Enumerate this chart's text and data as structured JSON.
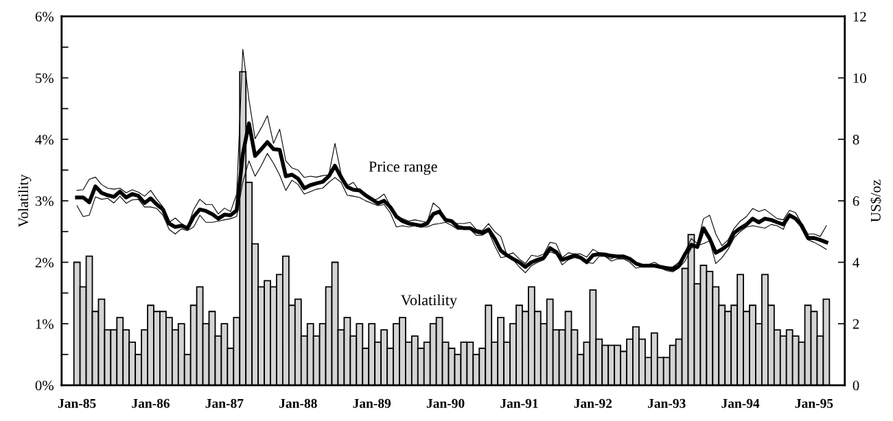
{
  "chart_data": {
    "type": "bar",
    "ylabel": "Volatility",
    "y2label": "US$/oz",
    "annotations": [
      "Price range",
      "Volatility"
    ],
    "categories": [
      "Jan-85",
      null,
      null,
      null,
      null,
      null,
      null,
      null,
      null,
      null,
      null,
      null,
      "Jan-86",
      null,
      null,
      null,
      null,
      null,
      null,
      null,
      null,
      null,
      null,
      null,
      "Jan-87",
      null,
      null,
      null,
      null,
      null,
      null,
      null,
      null,
      null,
      null,
      null,
      "Jan-88",
      null,
      null,
      null,
      null,
      null,
      null,
      null,
      null,
      null,
      null,
      null,
      "Jan-89",
      null,
      null,
      null,
      null,
      null,
      null,
      null,
      null,
      null,
      null,
      null,
      "Jan-90",
      null,
      null,
      null,
      null,
      null,
      null,
      null,
      null,
      null,
      null,
      null,
      "Jan-91",
      null,
      null,
      null,
      null,
      null,
      null,
      null,
      null,
      null,
      null,
      null,
      "Jan-92",
      null,
      null,
      null,
      null,
      null,
      null,
      null,
      null,
      null,
      null,
      null,
      "Jan-93",
      null,
      null,
      null,
      null,
      null,
      null,
      null,
      null,
      null,
      null,
      null,
      "Jan-94",
      null,
      null,
      null,
      null,
      null,
      null,
      null,
      null,
      null,
      null,
      null,
      "Jan-95",
      null,
      null
    ],
    "series": [
      {
        "color": "#d4d4d4",
        "values": [
          2.0,
          1.6,
          2.1,
          1.2,
          1.4,
          0.9,
          0.9,
          1.1,
          0.9,
          0.7,
          0.5,
          0.9,
          1.3,
          1.2,
          1.2,
          1.1,
          0.9,
          1.0,
          0.5,
          1.3,
          1.6,
          1.0,
          1.2,
          0.8,
          1.0,
          0.6,
          1.1,
          5.1,
          3.3,
          2.3,
          1.6,
          1.7,
          1.6,
          1.8,
          2.1,
          1.3,
          1.4,
          0.8,
          1.0,
          0.8,
          1.0,
          1.6,
          2.0,
          0.9,
          1.1,
          0.8,
          1.0,
          0.6,
          1.0,
          0.7,
          0.9,
          0.6,
          1.0,
          1.1,
          0.7,
          0.8,
          0.6,
          0.7,
          1.0,
          1.1,
          0.7,
          0.6,
          0.5,
          0.7,
          0.7,
          0.5,
          0.6,
          1.3,
          0.7,
          1.1,
          0.7,
          1.0,
          1.3,
          1.2,
          1.6,
          1.2,
          1.0,
          1.4,
          0.9,
          0.9,
          1.2,
          0.9,
          0.5,
          0.7,
          1.55,
          0.75,
          0.65,
          0.65,
          0.65,
          0.55,
          0.75,
          0.95,
          0.75,
          0.45,
          0.85,
          0.45,
          0.45,
          0.65,
          0.75,
          1.9,
          2.45,
          1.65,
          1.95,
          1.85,
          1.6,
          1.3,
          1.2,
          1.3,
          1.8,
          1.2,
          1.3,
          1.0,
          1.8,
          1.3,
          0.9,
          0.8,
          0.9,
          0.8,
          0.7,
          1.3,
          1.2,
          0.8,
          1.4
        ]
      },
      {
        "type": "line",
        "axis": "y2",
        "color": "#000000",
        "values": [
          6.11,
          6.11,
          5.95,
          6.47,
          6.26,
          6.18,
          6.13,
          6.3,
          6.11,
          6.22,
          6.16,
          5.93,
          6.08,
          5.88,
          5.72,
          5.26,
          5.15,
          5.19,
          5.11,
          5.49,
          5.72,
          5.67,
          5.57,
          5.42,
          5.55,
          5.53,
          5.69,
          7.52,
          8.52,
          7.46,
          7.68,
          7.91,
          7.68,
          7.66,
          6.8,
          6.85,
          6.72,
          6.41,
          6.51,
          6.57,
          6.62,
          6.8,
          7.14,
          6.77,
          6.45,
          6.36,
          6.34,
          6.18,
          6.05,
          5.92,
          6.0,
          5.8,
          5.49,
          5.34,
          5.26,
          5.23,
          5.19,
          5.26,
          5.57,
          5.65,
          5.38,
          5.34,
          5.15,
          5.11,
          5.11,
          5.0,
          4.96,
          5.07,
          4.77,
          4.38,
          4.23,
          4.11,
          4.0,
          3.85,
          4.0,
          4.08,
          4.15,
          4.46,
          4.34,
          4.08,
          4.15,
          4.23,
          4.15,
          4.0,
          4.23,
          4.27,
          4.25,
          4.21,
          4.19,
          4.19,
          4.11,
          3.96,
          3.89,
          3.89,
          3.89,
          3.85,
          3.81,
          3.77,
          3.89,
          4.27,
          4.57,
          4.5,
          5.11,
          4.77,
          4.31,
          4.42,
          4.57,
          4.96,
          5.11,
          5.23,
          5.42,
          5.3,
          5.42,
          5.38,
          5.3,
          5.23,
          5.53,
          5.42,
          5.19,
          4.79,
          4.79,
          4.73,
          4.65
        ]
      },
      {
        "type": "line",
        "axis": "y2",
        "color": "#000000",
        "values": [
          6.34,
          6.36,
          6.7,
          6.77,
          6.53,
          6.41,
          6.38,
          6.41,
          6.26,
          6.36,
          6.28,
          6.15,
          6.34,
          6.05,
          5.8,
          5.3,
          5.44,
          5.26,
          5.15,
          5.72,
          6.05,
          5.88,
          5.88,
          5.57,
          5.76,
          5.65,
          6.22,
          10.93,
          9.29,
          8.02,
          8.37,
          8.77,
          7.87,
          8.33,
          7.3,
          7.07,
          7.0,
          6.76,
          6.8,
          6.77,
          6.82,
          6.84,
          7.87,
          6.88,
          6.49,
          6.6,
          6.3,
          6.15,
          6.0,
          6.07,
          6.22,
          5.84,
          5.53,
          5.42,
          5.34,
          5.38,
          5.34,
          5.3,
          5.93,
          5.76,
          5.42,
          5.3,
          5.26,
          5.26,
          5.3,
          5.07,
          5.03,
          5.26,
          5.0,
          4.84,
          4.23,
          4.31,
          4.11,
          3.96,
          4.23,
          4.19,
          4.27,
          4.65,
          4.61,
          4.15,
          4.31,
          4.27,
          4.27,
          4.17,
          4.42,
          4.31,
          4.19,
          4.11,
          4.23,
          4.19,
          4.11,
          3.92,
          3.92,
          3.92,
          4.0,
          3.89,
          3.85,
          3.85,
          4.0,
          4.34,
          4.77,
          4.61,
          5.42,
          5.53,
          4.92,
          4.54,
          4.73,
          5.11,
          5.34,
          5.49,
          5.75,
          5.65,
          5.72,
          5.57,
          5.42,
          5.38,
          5.69,
          5.61,
          5.26,
          4.92,
          4.92,
          4.84,
          5.19
        ]
      },
      {
        "type": "line",
        "axis": "y2",
        "color": "#000000",
        "values": [
          5.84,
          5.49,
          5.53,
          6.13,
          6.05,
          6.08,
          5.93,
          6.15,
          5.92,
          6.03,
          6.05,
          5.8,
          5.8,
          5.75,
          5.53,
          5.07,
          4.92,
          5.09,
          5.03,
          5.15,
          5.53,
          5.3,
          5.3,
          5.34,
          5.38,
          5.42,
          5.49,
          6.61,
          7.3,
          6.8,
          7.14,
          7.54,
          7.22,
          6.84,
          6.34,
          6.67,
          6.53,
          6.22,
          6.3,
          6.38,
          6.41,
          6.6,
          6.76,
          6.6,
          6.18,
          6.15,
          6.11,
          6.0,
          5.92,
          5.84,
          5.88,
          5.61,
          5.15,
          5.19,
          5.15,
          5.19,
          5.15,
          5.15,
          5.23,
          5.26,
          5.3,
          5.2,
          5.07,
          5.07,
          5.07,
          4.88,
          4.88,
          5.0,
          4.54,
          4.15,
          4.19,
          4.08,
          3.85,
          3.66,
          3.89,
          4.0,
          4.08,
          4.34,
          4.27,
          3.92,
          4.08,
          4.15,
          4.11,
          4.0,
          3.96,
          4.19,
          4.19,
          4.04,
          4.11,
          4.11,
          4.0,
          3.81,
          3.85,
          3.85,
          3.85,
          3.81,
          3.73,
          3.69,
          3.81,
          4.04,
          4.46,
          4.54,
          4.61,
          4.7,
          3.96,
          4.15,
          4.42,
          4.8,
          5.0,
          5.15,
          5.19,
          5.15,
          5.11,
          5.23,
          5.19,
          5.07,
          5.57,
          5.46,
          5.07,
          4.73,
          4.65,
          4.54,
          4.42
        ]
      }
    ],
    "ylim": [
      0,
      6
    ],
    "yticks": [
      {
        "value": 0,
        "label": "0%"
      },
      {
        "value": 0.5,
        "label": null
      },
      {
        "value": 1,
        "label": "1%"
      },
      {
        "value": 1.5,
        "label": null
      },
      {
        "value": 2,
        "label": "2%"
      },
      {
        "value": 2.5,
        "label": null
      },
      {
        "value": 3,
        "label": "3%"
      },
      {
        "value": 3.5,
        "label": null
      },
      {
        "value": 4,
        "label": "4%"
      },
      {
        "value": 4.5,
        "label": null
      },
      {
        "value": 5,
        "label": "5%"
      },
      {
        "value": 5.5,
        "label": null
      },
      {
        "value": 6,
        "label": "6%"
      }
    ],
    "y2lim": [
      0,
      12
    ],
    "y2ticks": [
      0,
      2,
      4,
      6,
      8,
      10,
      12
    ],
    "grid": false,
    "legend": false
  }
}
